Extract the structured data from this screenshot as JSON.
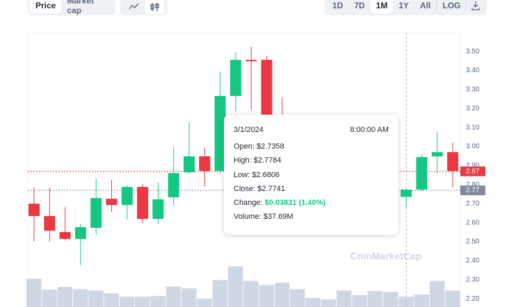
{
  "toolbar": {
    "left": [
      "Price",
      "Market cap"
    ],
    "right": [
      "1D",
      "7D",
      "1M",
      "1Y",
      "All",
      "LOG"
    ],
    "selected_left": "Price",
    "selected_right": "1M"
  },
  "chart_data": {
    "type": "candlestick",
    "ylim": [
      2.157,
      3.599
    ],
    "yticks": [
      {
        "value": 2.2,
        "label": "2.20"
      },
      {
        "value": 2.3,
        "label": "2.30"
      },
      {
        "value": 2.4,
        "label": "2.40"
      },
      {
        "value": 2.5,
        "label": "2.50"
      },
      {
        "value": 2.6,
        "label": "2.60"
      },
      {
        "value": 2.7,
        "label": "2.70"
      },
      {
        "value": 2.8,
        "label": "2.80"
      },
      {
        "value": 2.9,
        "label": "2.90"
      },
      {
        "value": 3.0,
        "label": "3.00"
      },
      {
        "value": 3.1,
        "label": "3.10"
      },
      {
        "value": 3.2,
        "label": "3.20"
      },
      {
        "value": 3.3,
        "label": "3.30"
      },
      {
        "value": 3.4,
        "label": "3.40"
      },
      {
        "value": 3.5,
        "label": "3.50"
      }
    ],
    "up_color": "#16c784",
    "down_color": "#ea3943",
    "volume_color": "#cfd6e4",
    "open": [
      2.7,
      2.635,
      2.551,
      2.515,
      2.573,
      2.726,
      2.693,
      2.788,
      2.62,
      2.734,
      2.865,
      2.949,
      2.872,
      3.266,
      3.456,
      3.456,
      3.0,
      null,
      null,
      null,
      null,
      null,
      null,
      null,
      2.7358,
      2.774,
      2.949,
      2.971
    ],
    "high": [
      2.785,
      2.785,
      2.682,
      2.595,
      2.832,
      2.825,
      2.796,
      2.803,
      2.81,
      2.996,
      3.128,
      2.996,
      3.394,
      3.496,
      3.526,
      3.474,
      3.259,
      null,
      null,
      null,
      null,
      null,
      null,
      null,
      2.7784,
      2.96,
      3.08,
      3.02
    ],
    "low": [
      2.5,
      2.5,
      2.507,
      2.376,
      2.536,
      2.657,
      2.617,
      2.595,
      2.595,
      2.693,
      2.858,
      2.792,
      2.858,
      3.186,
      3.193,
      2.95,
      2.9,
      null,
      null,
      null,
      null,
      null,
      null,
      null,
      2.6806,
      2.766,
      2.858,
      2.785
    ],
    "close": [
      2.635,
      2.558,
      2.515,
      2.577,
      2.73,
      2.693,
      2.788,
      2.62,
      2.723,
      2.861,
      2.949,
      2.872,
      3.266,
      3.456,
      3.449,
      3.0,
      2.95,
      null,
      null,
      null,
      null,
      null,
      null,
      null,
      2.7741,
      2.945,
      2.971,
      2.872
    ],
    "volume": [
      103,
      63,
      73,
      65,
      60,
      50,
      38,
      38,
      40,
      75,
      68,
      30,
      98,
      148,
      95,
      80,
      88,
      65,
      33,
      28,
      60,
      43,
      58,
      55,
      37.69,
      45,
      95,
      60
    ],
    "volume_lim": [
      0,
      1000
    ],
    "price_lines": [
      {
        "value": 2.87,
        "color": "#ea3943"
      },
      {
        "value": 2.77,
        "color": "#808a9d"
      }
    ],
    "watermark": "CoinMarketCap",
    "tooltip": {
      "date": "3/1/2024",
      "time": "8:00:00 AM",
      "rows": [
        {
          "label": "Open:",
          "value": "$2.7358"
        },
        {
          "label": "High:",
          "value": "$2.7784"
        },
        {
          "label": "Low:",
          "value": "$2.6806"
        },
        {
          "label": "Close:",
          "value": "$2.7741"
        },
        {
          "label": "Change:",
          "value": "$0.03831 (1.40%)"
        },
        {
          "label": "Volume:",
          "value": "$37.69M"
        }
      ]
    }
  }
}
